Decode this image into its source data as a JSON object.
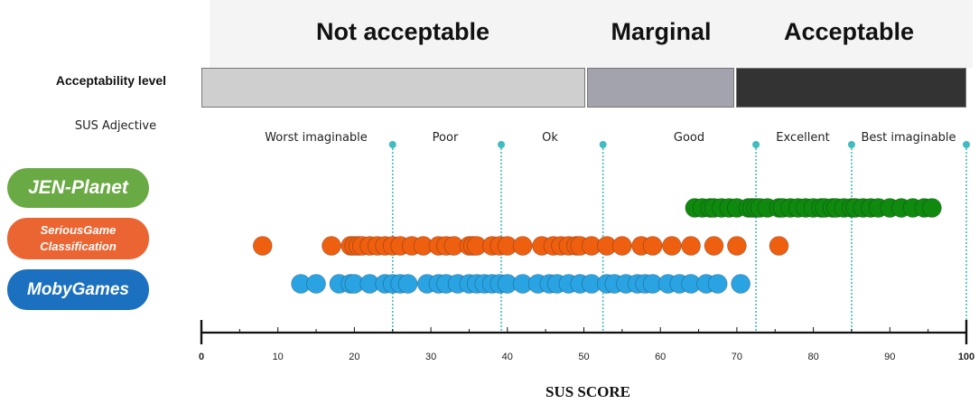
{
  "acceptability": {
    "ranges": [
      {
        "label": "Not acceptable",
        "start": 0,
        "end": 50,
        "color": "#cfcfcf"
      },
      {
        "label": "Marginal",
        "start": 50,
        "end": 70,
        "color": "#a3a3ad"
      },
      {
        "label": "Acceptable",
        "start": 70,
        "end": 100,
        "color": "#333333"
      }
    ],
    "row_label": "Acceptability level"
  },
  "sus_adjective": {
    "title": "SUS Adjective",
    "labels": [
      {
        "text": "Worst imaginable",
        "center": 15
      },
      {
        "text": "Poor",
        "center": 32
      },
      {
        "text": "Ok",
        "center": 46
      },
      {
        "text": "Good",
        "center": 63
      },
      {
        "text": "Excellent",
        "center": 78.5
      },
      {
        "text": "Best imaginable",
        "center": 92.5
      }
    ],
    "thresholds": [
      25,
      39.2,
      52.5,
      72.5,
      85,
      100
    ],
    "threshold_color": "#40bcc0"
  },
  "datasets": [
    {
      "label": "JEN-Planet",
      "color": "#6aaa45"
    },
    {
      "label": "SeriousGame Classification",
      "color": "#ea6532"
    },
    {
      "label": "MobyGames",
      "color": "#1b70bf"
    }
  ],
  "chart_data": {
    "type": "scatter",
    "xlabel": "SUS SCORE",
    "xlim": [
      0,
      100
    ],
    "xticks": [
      0,
      10,
      20,
      30,
      40,
      50,
      60,
      70,
      80,
      90,
      100
    ],
    "series": [
      {
        "name": "JEN-Planet",
        "color": "#0f8a0f",
        "values": [
          64.5,
          65.5,
          66.5,
          67,
          68,
          69,
          70,
          71.5,
          72,
          72.5,
          73,
          74,
          75.5,
          76,
          77,
          78,
          79,
          80,
          81,
          81.5,
          82.5,
          83,
          84,
          85,
          85.5,
          86.5,
          87.5,
          88.5,
          90,
          91.5,
          93,
          94.5,
          95.5
        ]
      },
      {
        "name": "SeriousGame Classification",
        "color": "#ee5f10",
        "values": [
          8,
          17,
          19.5,
          20,
          20.5,
          21,
          22,
          23,
          24,
          25,
          26,
          27.5,
          29,
          31,
          32,
          33,
          35,
          35.5,
          36,
          38,
          39,
          40,
          42,
          44.5,
          46,
          47,
          48,
          49,
          49.5,
          51,
          53,
          55,
          57.5,
          59,
          61.5,
          64,
          67,
          70,
          75.5
        ]
      },
      {
        "name": "MobyGames",
        "color": "#2aa3e2",
        "values": [
          13,
          15,
          18,
          19.5,
          20,
          22,
          24,
          25,
          26,
          27,
          29.5,
          31,
          32,
          33.5,
          35,
          36,
          37,
          38,
          39,
          40,
          42,
          44,
          45.5,
          46.5,
          48,
          49.5,
          51,
          53,
          54,
          55.5,
          57,
          58,
          59,
          61,
          62.5,
          64,
          66,
          67.5,
          70.5
        ]
      }
    ]
  }
}
